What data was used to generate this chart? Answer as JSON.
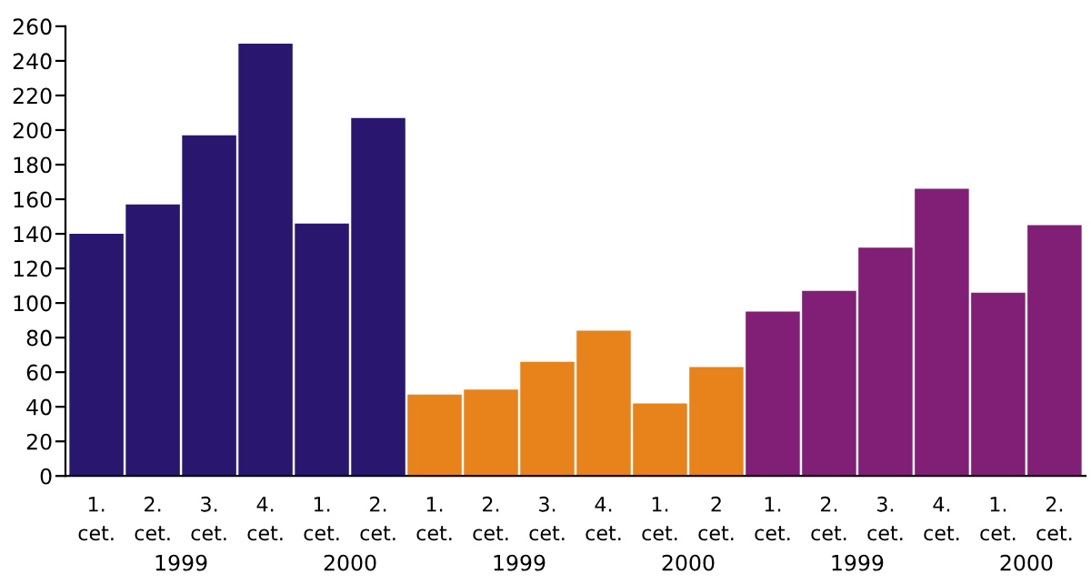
{
  "chart_data": {
    "type": "bar",
    "categories": [
      "1.\ncet.",
      "2.\ncet.",
      "3.\ncet.",
      "4.\ncet.",
      "1.\ncet.",
      "2.\ncet.",
      "1.\ncet.",
      "2.\ncet.",
      "3.\ncet.",
      "4.\ncet.",
      "1.\ncet.",
      "2\ncet.",
      "1.\ncet.",
      "2.\ncet.",
      "3.\ncet.",
      "4.\ncet.",
      "1.\ncet.",
      "2.\ncet."
    ],
    "values": [
      140,
      157,
      197,
      250,
      146,
      207,
      47,
      50,
      66,
      84,
      42,
      63,
      95,
      107,
      132,
      166,
      106,
      145
    ],
    "colors": [
      "#29166f",
      "#29166f",
      "#29166f",
      "#29166f",
      "#29166f",
      "#29166f",
      "#e8821a",
      "#e8821a",
      "#e8821a",
      "#e8821a",
      "#e8821a",
      "#e8821a",
      "#811e76",
      "#811e76",
      "#811e76",
      "#811e76",
      "#811e76",
      "#811e76"
    ],
    "annotations": [
      "1999",
      "2000",
      "1999",
      "2000",
      "1999",
      "2000"
    ],
    "ylim": [
      0,
      260
    ],
    "yticks": [
      0,
      20,
      40,
      60,
      80,
      100,
      120,
      140,
      160,
      180,
      200,
      220,
      240,
      260
    ],
    "grid": false,
    "legend": false
  }
}
